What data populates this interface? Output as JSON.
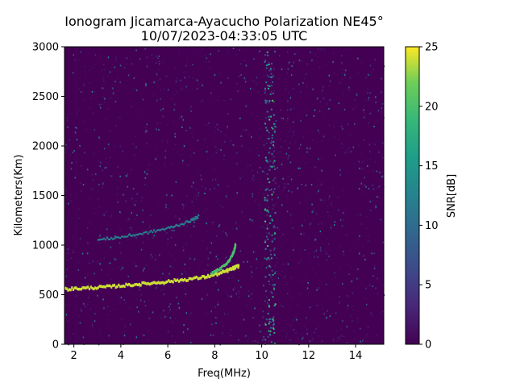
{
  "chart_data": {
    "type": "heatmap",
    "title": "Ionogram Jicamarca-Ayacucho Polarization NE45°",
    "subtitle": "10/07/2023-04:33:05 UTC",
    "xlabel": "Freq(MHz)",
    "ylabel": "Kilometers(Km)",
    "xlim": [
      1.6,
      15.2
    ],
    "ylim": [
      0,
      3000
    ],
    "xticks": [
      "2",
      "4",
      "6",
      "8",
      "10",
      "12",
      "14"
    ],
    "yticks": [
      "0",
      "500",
      "1000",
      "1500",
      "2000",
      "2500",
      "3000"
    ],
    "colorbar": {
      "label": "SNR[dB]",
      "range": [
        0,
        25
      ],
      "ticks": [
        "0",
        "5",
        "10",
        "15",
        "20",
        "25"
      ],
      "colormap": "viridis"
    },
    "background_color": "#440154",
    "traces": [
      {
        "description_key": "F-layer first hop",
        "snr_db": 24,
        "points": [
          [
            1.6,
            570
          ],
          [
            2.5,
            580
          ],
          [
            3.5,
            595
          ],
          [
            4.5,
            615
          ],
          [
            5.5,
            635
          ],
          [
            6.5,
            660
          ],
          [
            7.5,
            690
          ],
          [
            8.2,
            730
          ],
          [
            8.7,
            775
          ],
          [
            9.0,
            805
          ]
        ]
      },
      {
        "description_key": "F-layer upper branch",
        "snr_db": 20,
        "points": [
          [
            7.8,
            720
          ],
          [
            8.2,
            770
          ],
          [
            8.5,
            830
          ],
          [
            8.7,
            900
          ],
          [
            8.8,
            960
          ],
          [
            8.85,
            1020
          ]
        ]
      },
      {
        "description_key": "F-layer second hop",
        "snr_db": 12,
        "points": [
          [
            3.0,
            1060
          ],
          [
            4.0,
            1090
          ],
          [
            5.0,
            1130
          ],
          [
            6.0,
            1180
          ],
          [
            6.8,
            1240
          ],
          [
            7.3,
            1300
          ]
        ]
      }
    ]
  }
}
